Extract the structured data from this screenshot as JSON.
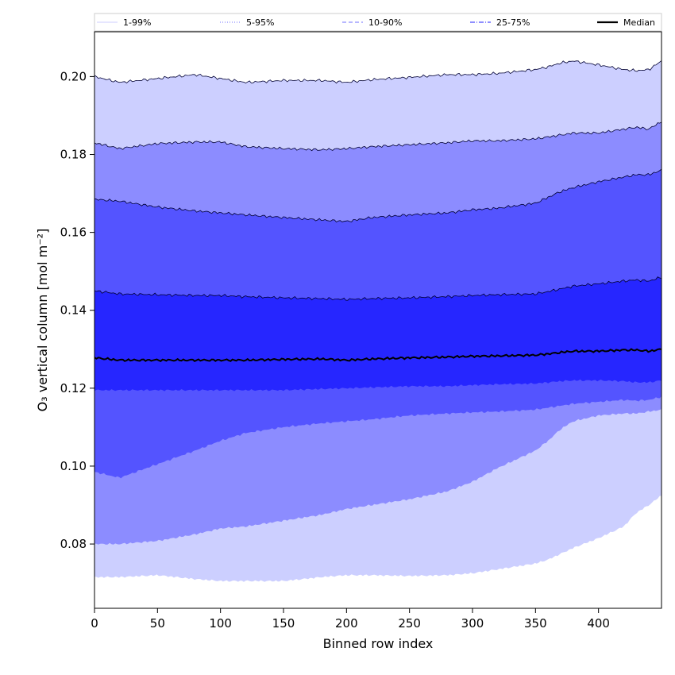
{
  "chart_data": {
    "type": "area",
    "title": "",
    "xlabel": "Binned row index",
    "ylabel": "O₃ vertical column [mol m⁻²]",
    "xlim": [
      0,
      450
    ],
    "ylim": [
      0.0635,
      0.2115
    ],
    "x_ticks": [
      0,
      50,
      100,
      150,
      200,
      250,
      300,
      350,
      400
    ],
    "y_ticks": [
      0.08,
      0.1,
      0.12,
      0.14,
      0.16,
      0.18,
      0.2
    ],
    "x_tick_labels": [
      "0",
      "50",
      "100",
      "150",
      "200",
      "250",
      "300",
      "350",
      "400"
    ],
    "y_tick_labels": [
      "0.08",
      "0.10",
      "0.12",
      "0.14",
      "0.16",
      "0.18",
      "0.20"
    ],
    "grid": false,
    "legend_position": "top",
    "x": [
      0,
      20,
      50,
      80,
      100,
      120,
      150,
      180,
      200,
      220,
      250,
      280,
      300,
      320,
      350,
      360,
      370,
      380,
      400,
      420,
      430,
      440,
      450
    ],
    "bands": [
      {
        "name": "1-99%",
        "color": "#cccfff",
        "lower": [
          0.0715,
          0.0715,
          0.072,
          0.071,
          0.0705,
          0.0705,
          0.0705,
          0.0715,
          0.072,
          0.072,
          0.0718,
          0.072,
          0.0725,
          0.0735,
          0.075,
          0.076,
          0.0775,
          0.079,
          0.0815,
          0.0845,
          0.088,
          0.09,
          0.0925
        ],
        "upper": [
          0.2,
          0.1985,
          0.1995,
          0.2005,
          0.1995,
          0.1985,
          0.199,
          0.199,
          0.1985,
          0.1992,
          0.1998,
          0.2005,
          0.2005,
          0.2008,
          0.2018,
          0.2025,
          0.2035,
          0.204,
          0.203,
          0.2018,
          0.2015,
          0.2018,
          0.204
        ]
      },
      {
        "name": "5-95%",
        "color": "#8c8cff",
        "lower": [
          0.08,
          0.08,
          0.0808,
          0.0825,
          0.084,
          0.0845,
          0.086,
          0.0875,
          0.089,
          0.09,
          0.0915,
          0.0935,
          0.096,
          0.0995,
          0.104,
          0.1065,
          0.1095,
          0.1115,
          0.113,
          0.1135,
          0.1135,
          0.114,
          0.1145
        ],
        "upper": [
          0.183,
          0.1815,
          0.1828,
          0.1832,
          0.1832,
          0.182,
          0.1815,
          0.1812,
          0.1815,
          0.182,
          0.1825,
          0.183,
          0.1835,
          0.1835,
          0.184,
          0.1845,
          0.185,
          0.1855,
          0.1855,
          0.1865,
          0.187,
          0.1865,
          0.1885
        ]
      },
      {
        "name": "10-90%",
        "color": "#5454ff",
        "lower": [
          0.0985,
          0.097,
          0.1005,
          0.104,
          0.1065,
          0.1085,
          0.11,
          0.111,
          0.1115,
          0.112,
          0.113,
          0.1135,
          0.1138,
          0.114,
          0.1145,
          0.115,
          0.1155,
          0.116,
          0.1165,
          0.117,
          0.1168,
          0.117,
          0.1178
        ],
        "upper": [
          0.1685,
          0.168,
          0.1665,
          0.1655,
          0.165,
          0.1645,
          0.1638,
          0.1632,
          0.1628,
          0.1638,
          0.1645,
          0.165,
          0.1658,
          0.1662,
          0.1675,
          0.169,
          0.1705,
          0.1715,
          0.173,
          0.1742,
          0.1748,
          0.1748,
          0.176
        ]
      },
      {
        "name": "25-75%",
        "color": "#2626ff",
        "lower": [
          0.1195,
          0.1195,
          0.1195,
          0.1195,
          0.1195,
          0.1195,
          0.1195,
          0.1198,
          0.12,
          0.1202,
          0.1205,
          0.1205,
          0.1208,
          0.121,
          0.1212,
          0.1215,
          0.1218,
          0.122,
          0.122,
          0.1218,
          0.1215,
          0.1215,
          0.122
        ],
        "upper": [
          0.145,
          0.1442,
          0.144,
          0.1438,
          0.1438,
          0.1435,
          0.1432,
          0.143,
          0.1428,
          0.143,
          0.1432,
          0.1435,
          0.1438,
          0.144,
          0.1442,
          0.1448,
          0.1455,
          0.1462,
          0.1468,
          0.1475,
          0.1478,
          0.1475,
          0.1485
        ]
      }
    ],
    "median": {
      "name": "Median",
      "color": "#000000",
      "values": [
        0.1278,
        0.1272,
        0.1272,
        0.1272,
        0.1272,
        0.1272,
        0.1274,
        0.1275,
        0.1272,
        0.1275,
        0.1278,
        0.128,
        0.1282,
        0.1283,
        0.1285,
        0.1288,
        0.1292,
        0.1295,
        0.1295,
        0.1298,
        0.1298,
        0.1295,
        0.13
      ]
    },
    "legend": [
      {
        "label": "1-99%",
        "style": "solid",
        "color": "#d8d8ff"
      },
      {
        "label": "5-95%",
        "style": "dotted",
        "color": "#8c8cff"
      },
      {
        "label": "10-90%",
        "style": "dashed",
        "color": "#8c8cff"
      },
      {
        "label": "25-75%",
        "style": "dashdot",
        "color": "#4a4aff"
      },
      {
        "label": "Median",
        "style": "solid-thick",
        "color": "#000000"
      }
    ]
  }
}
